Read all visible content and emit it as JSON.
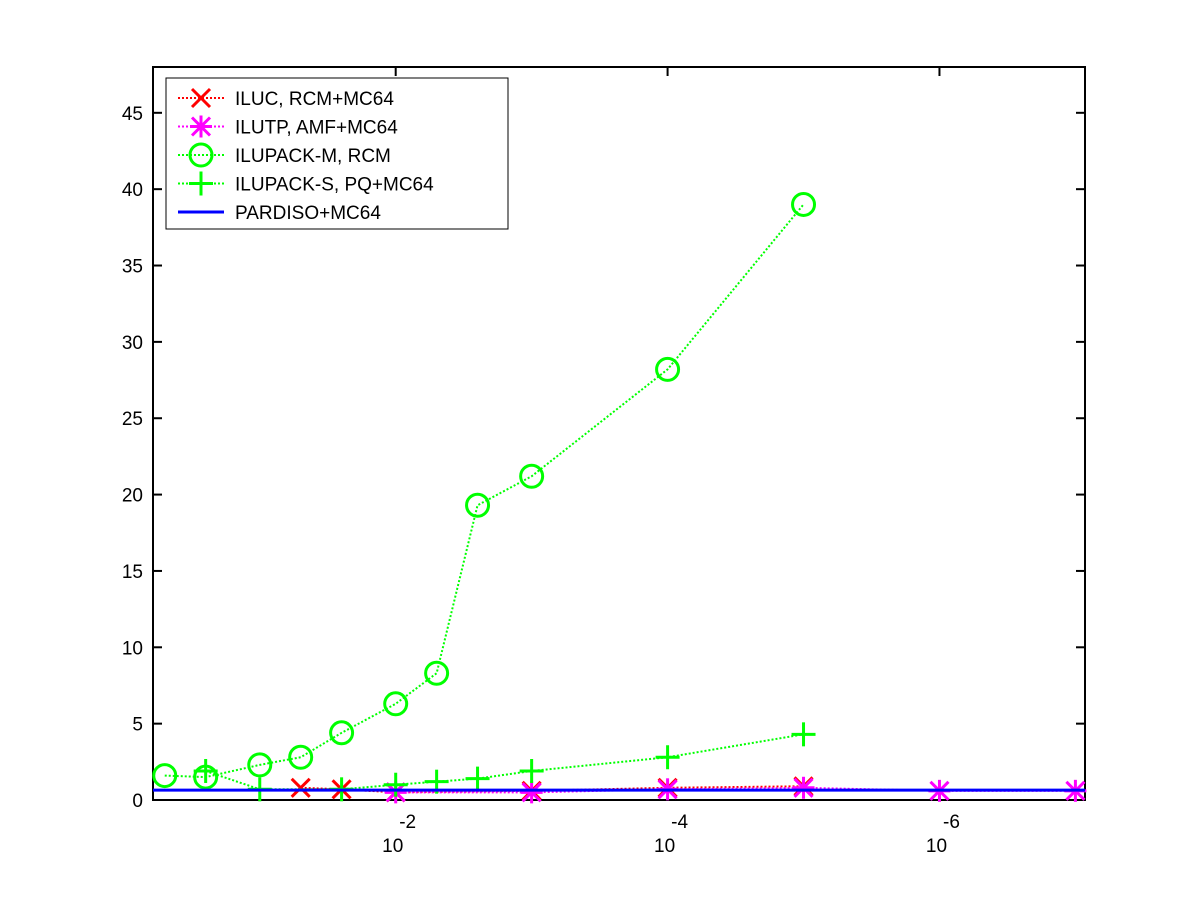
{
  "chart_data": {
    "type": "line",
    "xscale": "log",
    "xlim": [
      0.61,
      8.5e-08
    ],
    "xticks": [
      {
        "value": 0.01,
        "label": "10",
        "exponent": "-2"
      },
      {
        "value": 0.0001,
        "label": "10",
        "exponent": "-4"
      },
      {
        "value": 1e-06,
        "label": "10",
        "exponent": "-6"
      }
    ],
    "ylim": [
      0,
      48
    ],
    "yticks": [
      0,
      5,
      10,
      15,
      20,
      25,
      30,
      35,
      40,
      45
    ],
    "legend": "northwest",
    "series": [
      {
        "name": "ILUC, RCM+MC64",
        "color": "#ff0000",
        "marker": "x",
        "linestyle": "dotted",
        "x": [
          0.05,
          0.025,
          0.01,
          0.001,
          0.0001,
          1e-05
        ],
        "values": [
          0.8,
          0.7,
          0.5,
          0.6,
          0.8,
          0.9
        ]
      },
      {
        "name": "ILUTP, AMF+MC64",
        "color": "#ff00ff",
        "marker": "star",
        "linestyle": "dotted",
        "x": [
          0.01,
          0.001,
          0.0001,
          1e-05,
          1e-06,
          1e-07
        ],
        "values": [
          0.5,
          0.5,
          0.7,
          0.8,
          0.6,
          0.6
        ]
      },
      {
        "name": "ILUPACK-M, RCM",
        "color": "#00ff00",
        "marker": "circle",
        "linestyle": "dotted",
        "x": [
          0.5,
          0.25,
          0.1,
          0.05,
          0.025,
          0.01,
          0.005,
          0.0025,
          0.001,
          0.0001,
          1e-05
        ],
        "values": [
          1.6,
          1.5,
          2.3,
          2.8,
          4.4,
          6.3,
          8.3,
          19.3,
          21.2,
          28.2,
          39.0
        ]
      },
      {
        "name": "ILUPACK-S, PQ+MC64",
        "color": "#00ff00",
        "marker": "plus",
        "linestyle": "dotted",
        "x": [
          0.25,
          0.1,
          0.025,
          0.01,
          0.005,
          0.0025,
          0.001,
          0.0001,
          1e-05
        ],
        "values": [
          1.9,
          0.7,
          0.7,
          1.0,
          1.2,
          1.4,
          1.9,
          2.8,
          4.3
        ]
      },
      {
        "name": "PARDISO+MC64",
        "color": "#0000ff",
        "marker": "none",
        "linestyle": "solid",
        "x": [
          0.61,
          8.5e-08
        ],
        "values": [
          0.65,
          0.65
        ]
      }
    ]
  }
}
